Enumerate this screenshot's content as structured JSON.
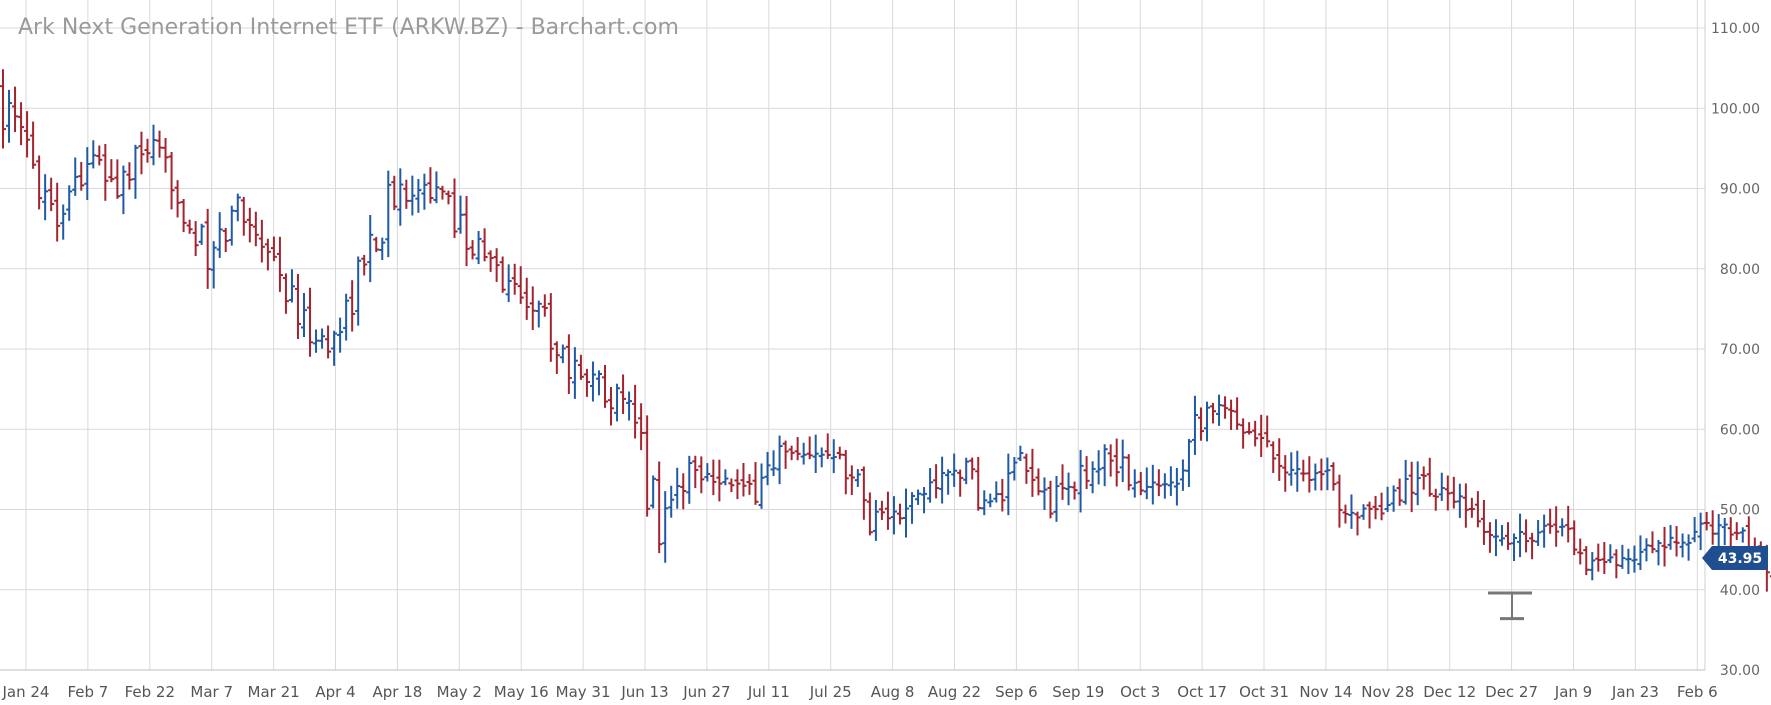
{
  "chart_data": {
    "type": "ohlc",
    "title": "Ark Next Generation Internet ETF (ARKW.BZ) - Barchart.com",
    "xlabel": "",
    "ylabel": "",
    "ylim": [
      30,
      110
    ],
    "y_ticks": [
      "110.00",
      "100.00",
      "90.00",
      "80.00",
      "70.00",
      "60.00",
      "50.00",
      "40.00",
      "30.00"
    ],
    "x_ticks": [
      "Jan 24",
      "Feb 7",
      "Feb 22",
      "Mar 7",
      "Mar 21",
      "Apr 4",
      "Apr 18",
      "May 2",
      "May 16",
      "May 31",
      "Jun 13",
      "Jun 27",
      "Jul 11",
      "Jul 25",
      "Aug 8",
      "Aug 22",
      "Sep 6",
      "Sep 19",
      "Oct 3",
      "Oct 17",
      "Oct 31",
      "Nov 14",
      "Nov 28",
      "Dec 12",
      "Dec 27",
      "Jan 9",
      "Jan 23",
      "Feb 6"
    ],
    "last_price": "43.95",
    "grid": true,
    "colors": {
      "up": "#1f5aa6",
      "down": "#a3232f",
      "grid": "#d9d9d9",
      "price_badge": "#1f4f91",
      "marker": "#777777"
    },
    "weekly_closes": [
      101,
      95,
      87,
      94,
      90,
      95,
      90,
      80,
      88,
      83,
      74,
      70,
      79,
      88,
      91,
      88,
      82,
      78,
      75,
      68,
      66,
      62,
      49,
      55,
      54,
      52,
      57,
      56,
      58,
      50,
      49,
      53,
      55,
      50,
      55,
      51,
      54,
      57,
      52,
      54,
      63,
      62,
      59,
      55,
      54,
      50,
      49,
      54,
      52,
      49,
      46,
      47,
      48,
      43,
      44,
      45,
      46,
      48,
      47,
      43,
      40,
      46,
      43,
      42,
      45,
      44,
      42,
      43,
      45,
      40,
      38,
      36,
      37,
      38,
      42,
      43.95
    ]
  }
}
